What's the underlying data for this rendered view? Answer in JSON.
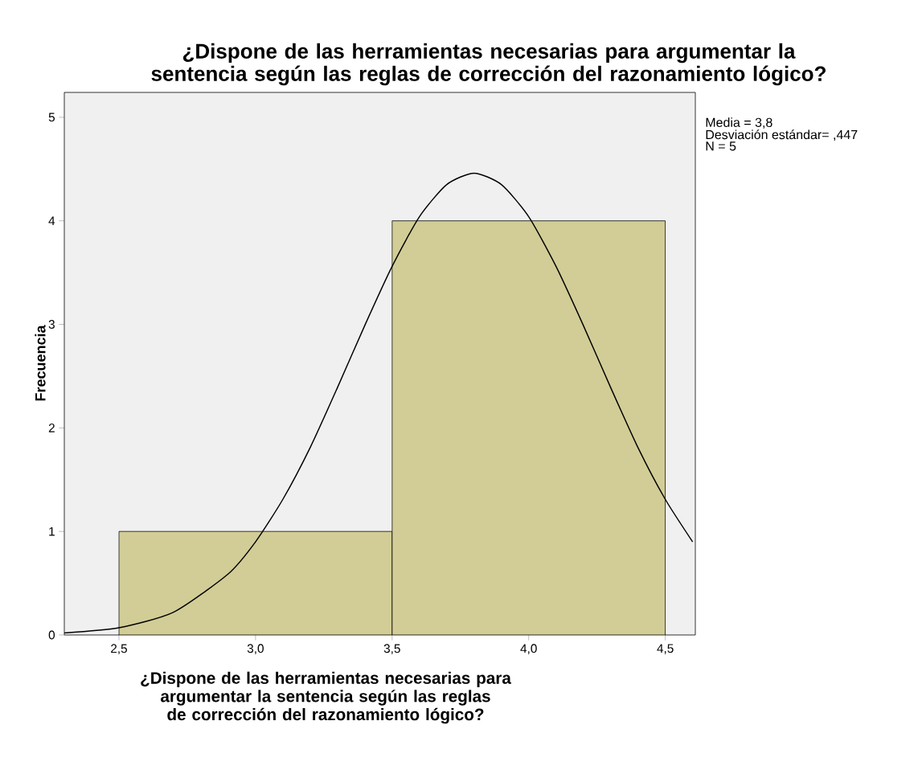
{
  "chart_data": {
    "type": "histogram",
    "title": "¿Dispone de las herramientas necesarias para argumentar la sentencia según las reglas de corrección del razonamiento lógico?",
    "xlabel": "¿Dispone de las herramientas necesarias para argumentar la sentencia según las reglas de corrección del razonamiento lógico?",
    "ylabel": "Frecuencia",
    "annotations": [
      "Media = 3,8",
      "Desviación estándar= ,447",
      "N = 5"
    ],
    "series": [
      {
        "bins": [
          2.5,
          3.5,
          4.5
        ],
        "values": [
          1,
          4
        ],
        "color": "#d2cd96"
      },
      {
        "type": "line",
        "color": "#000000",
        "x": [
          2.3,
          2.5,
          2.7,
          2.9,
          3.0,
          3.1,
          3.2,
          3.3,
          3.4,
          3.5,
          3.6,
          3.7,
          3.8,
          3.9,
          4.0,
          4.1,
          4.2,
          4.3,
          4.4,
          4.5,
          4.6
        ],
        "values": [
          0.02,
          0.07,
          0.22,
          0.59,
          0.9,
          1.31,
          1.81,
          2.39,
          2.99,
          3.56,
          4.04,
          4.35,
          4.46,
          4.35,
          4.04,
          3.56,
          2.99,
          2.39,
          1.81,
          1.31,
          0.9
        ]
      }
    ],
    "xlim": [
      2.3,
      4.61
    ],
    "ylim": [
      0,
      5.24
    ],
    "xticks": [
      {
        "value": 2.5,
        "label": "2,5"
      },
      {
        "value": 3.0,
        "label": "3,0"
      },
      {
        "value": 3.5,
        "label": "3,5"
      },
      {
        "value": 4.0,
        "label": "4,0"
      },
      {
        "value": 4.5,
        "label": "4,5"
      }
    ],
    "yticks": [
      0,
      1,
      2,
      3,
      4,
      5
    ],
    "grid": false
  }
}
